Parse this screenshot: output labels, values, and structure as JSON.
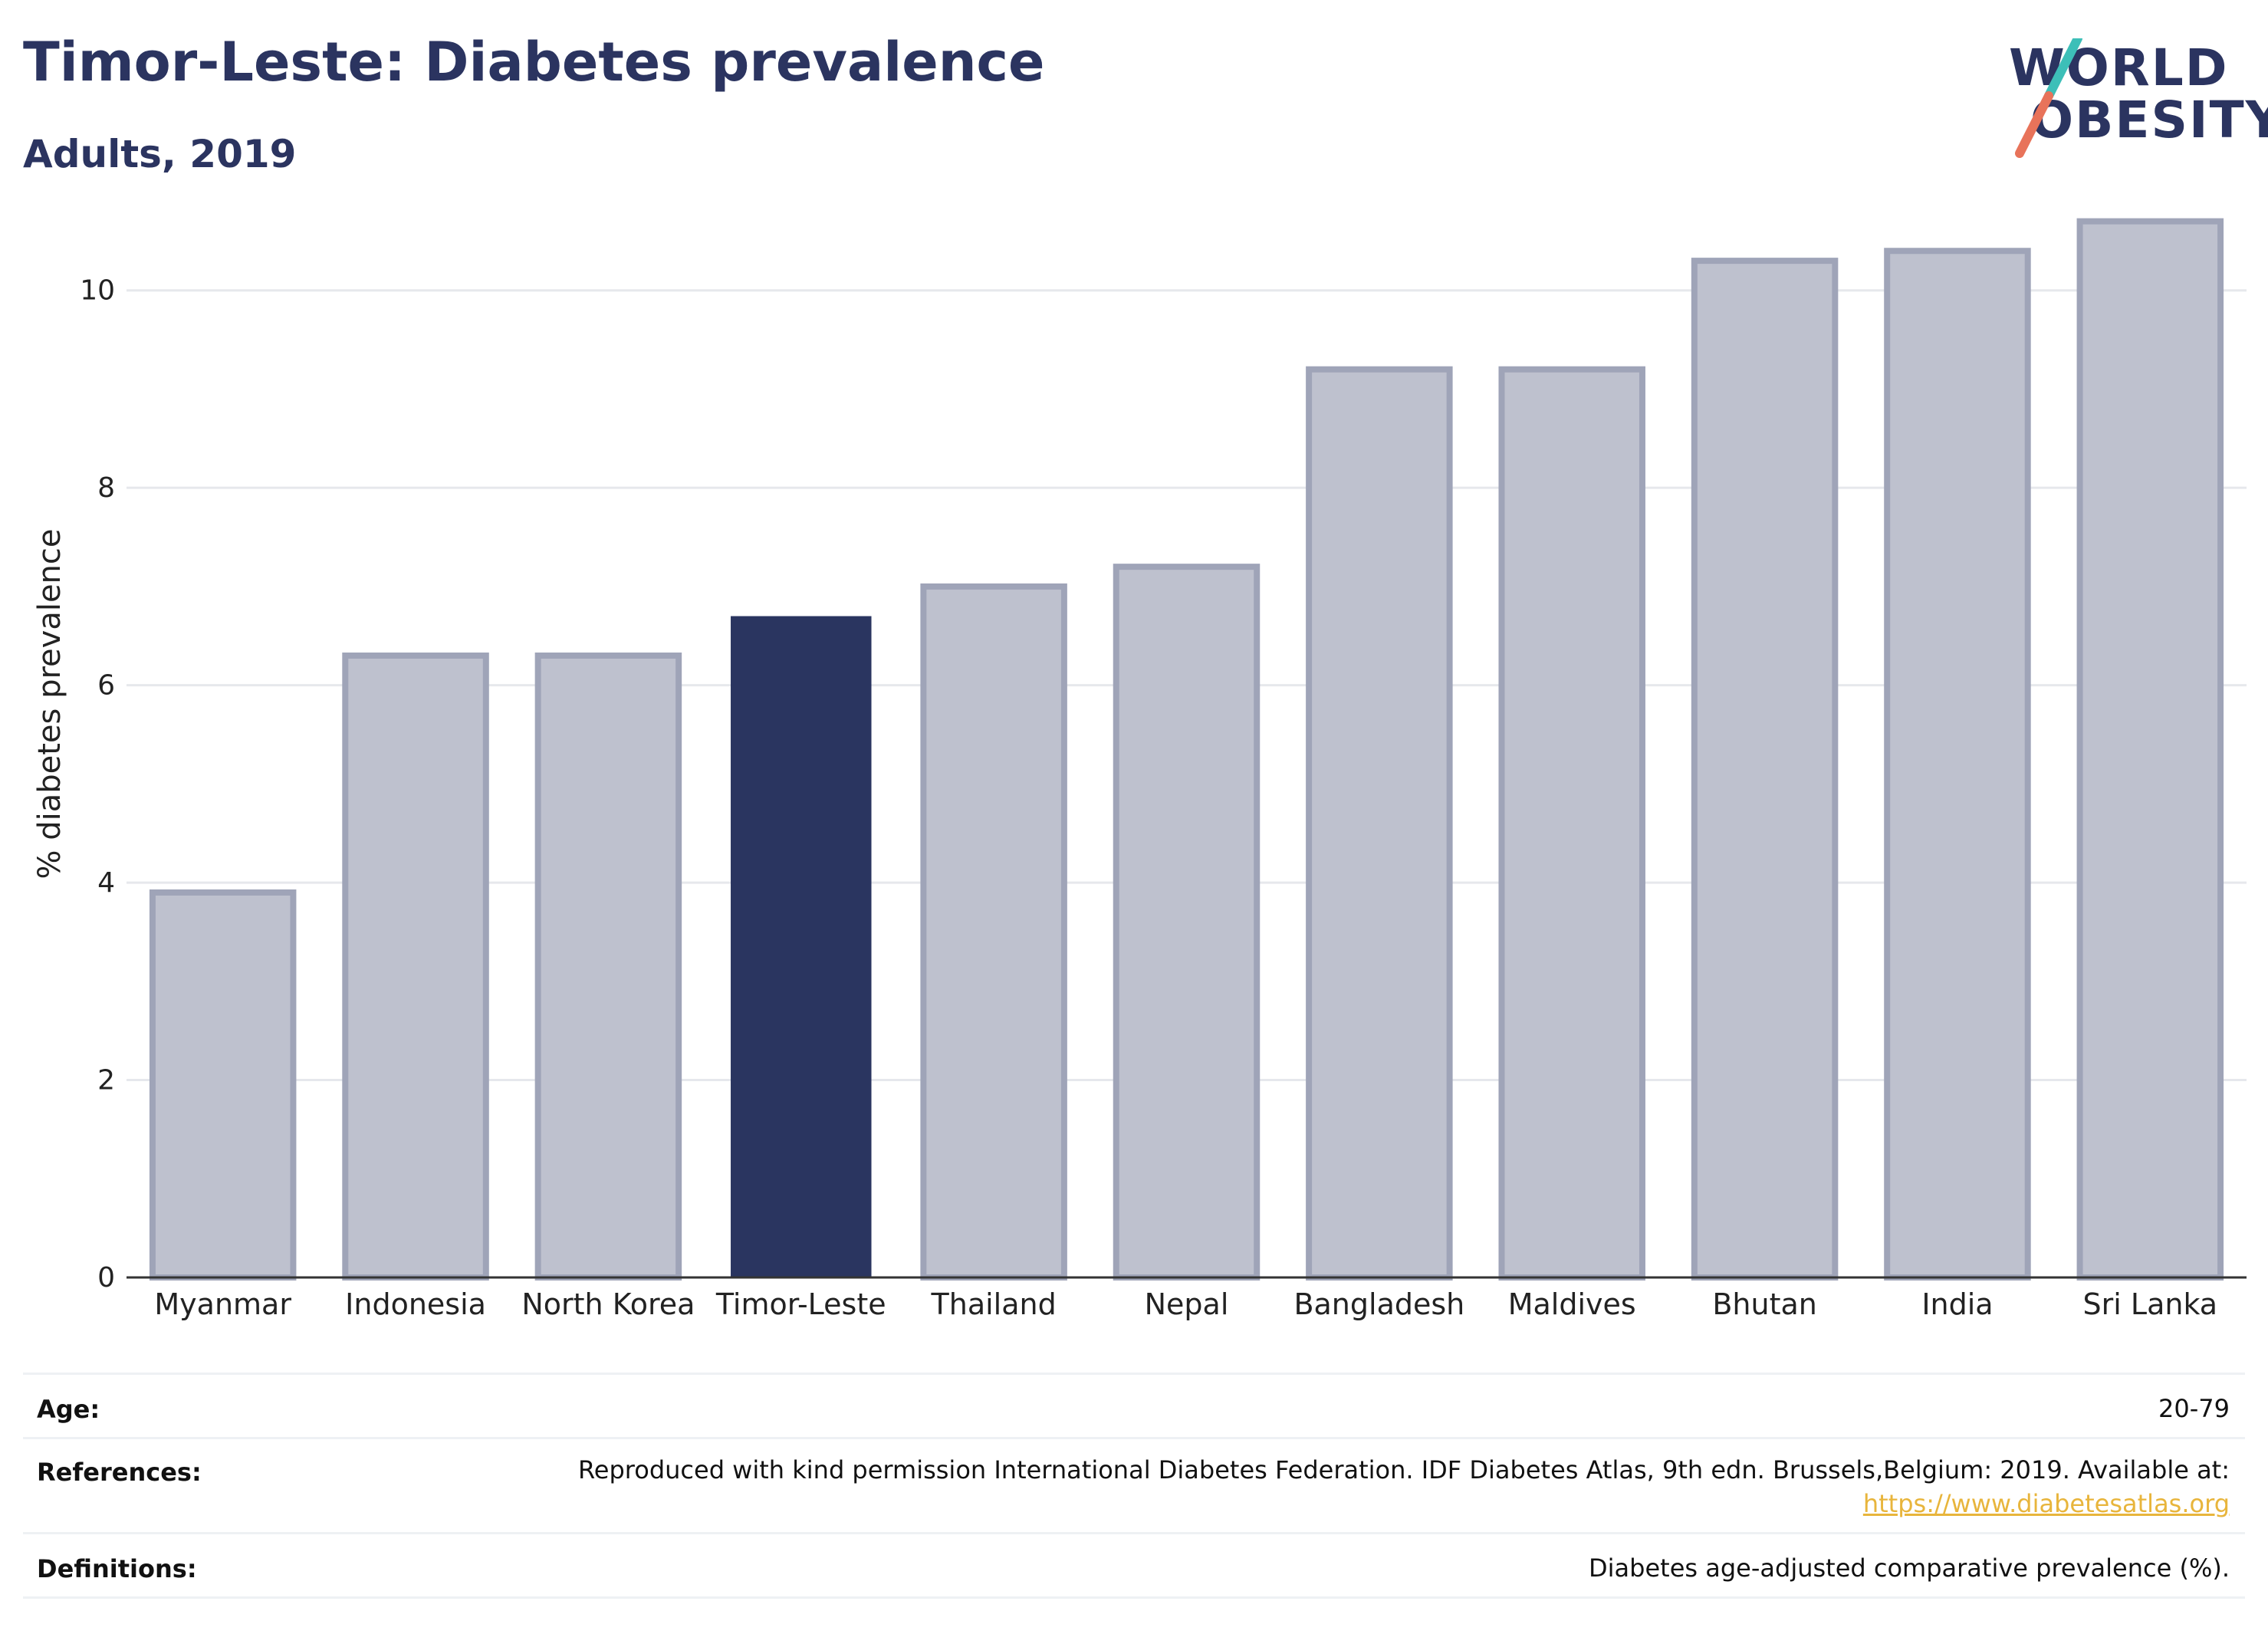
{
  "header": {
    "title": "Timor-Leste: Diabetes prevalence",
    "subtitle": "Adults, 2019",
    "logo_line1": "WORLD",
    "logo_line2": "OBESITY"
  },
  "colors": {
    "highlight_bar": "#2a3560",
    "other_bar": "#bec1ce",
    "other_bar_border": "#9fa4b8",
    "title": "#2b3460",
    "logo_teal": "#3dbfb8",
    "logo_coral": "#e8735a",
    "link": "#e8b53c"
  },
  "chart_data": {
    "type": "bar",
    "title": "Timor-Leste: Diabetes prevalence",
    "subtitle": "Adults, 2019",
    "xlabel": "",
    "ylabel": "% diabetes prevalence",
    "ylim": [
      0,
      11
    ],
    "yticks": [
      0,
      2,
      4,
      6,
      8,
      10
    ],
    "grid": true,
    "highlight": "Timor-Leste",
    "categories": [
      "Myanmar",
      "Indonesia",
      "North Korea",
      "Timor-Leste",
      "Thailand",
      "Nepal",
      "Bangladesh",
      "Maldives",
      "Bhutan",
      "India",
      "Sri Lanka"
    ],
    "values": [
      3.9,
      6.3,
      6.3,
      6.7,
      7.0,
      7.2,
      9.2,
      9.2,
      10.3,
      10.4,
      10.7
    ]
  },
  "info": {
    "age_label": "Age:",
    "age_value": "20-79",
    "references_label": "References:",
    "references_value": "Reproduced with kind permission International Diabetes Federation. IDF Diabetes Atlas, 9th edn. Brussels,Belgium: 2019. Available at:",
    "references_link": "https://www.diabetesatlas.org",
    "definitions_label": "Definitions:",
    "definitions_value": "Diabetes age-adjusted comparative prevalence (%)."
  }
}
